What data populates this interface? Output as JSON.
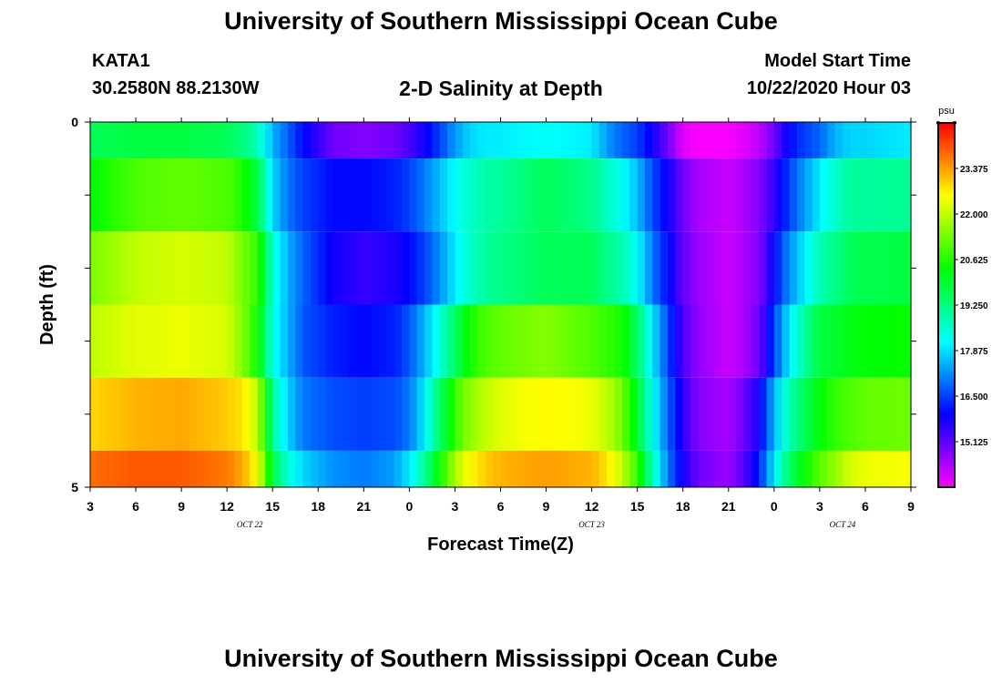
{
  "header": {
    "org_title": "University of Southern Mississippi Ocean Cube",
    "station_id": "KATA1",
    "station_coords": "30.2580N 88.2130W",
    "chart_title": "2-D Salinity at Depth",
    "model_start_label": "Model Start Time",
    "model_start_value": "10/22/2020 Hour 03"
  },
  "footer": {
    "org_title": "University of Southern Mississippi Ocean Cube"
  },
  "chart_data": {
    "type": "heatmap",
    "title": "2-D Salinity at Depth",
    "xlabel": "Forecast Time(Z)",
    "ylabel": "Depth (ft)",
    "x_tick_labels": [
      "3",
      "6",
      "9",
      "12",
      "15",
      "18",
      "21",
      "0",
      "3",
      "6",
      "9",
      "12",
      "15",
      "18",
      "21",
      "0",
      "3",
      "6",
      "9"
    ],
    "x_hours": [
      0,
      3,
      6,
      9,
      12,
      15,
      18,
      21,
      24,
      27,
      30,
      33,
      36,
      39,
      42,
      45,
      48,
      51,
      54
    ],
    "x_range_hours": [
      0,
      54
    ],
    "date_labels": [
      {
        "text": "OCT 22",
        "hour": 10.5
      },
      {
        "text": "OCT 23",
        "hour": 33
      },
      {
        "text": "OCT 24",
        "hour": 49.5
      }
    ],
    "y_tick_labels": [
      "0",
      "5"
    ],
    "ylim": [
      0,
      5
    ],
    "y_inverted": true,
    "depth_levels": [
      0.25,
      1.25,
      2.25,
      3.25,
      4.25,
      5.0
    ],
    "layer_bounds": [
      0,
      0.5,
      1.5,
      2.5,
      3.5,
      4.5,
      5
    ],
    "grid": false,
    "colorbar": {
      "unit": "psu",
      "min": 13.75,
      "max": 24.75,
      "labels": [
        23.375,
        22.0,
        20.625,
        19.25,
        17.875,
        16.5,
        15.125
      ],
      "label_text": [
        "23.375",
        "22.000",
        "20.625",
        "19.250",
        "17.875",
        "16.500",
        "15.125"
      ]
    },
    "time_keys": [
      0,
      3,
      6,
      9,
      10,
      11,
      12,
      13,
      14,
      16,
      18,
      20,
      21,
      22,
      23,
      24,
      25,
      26,
      27,
      30,
      33,
      34,
      35,
      36,
      37,
      38,
      39,
      40,
      42,
      43,
      44,
      45,
      46,
      47,
      48,
      49,
      50,
      51,
      54
    ],
    "series": [
      {
        "name": "0",
        "values": [
          19.6,
          19.8,
          19.8,
          19.6,
          19.3,
          18.8,
          17.5,
          16.8,
          16.0,
          15.0,
          14.8,
          15.0,
          15.3,
          15.8,
          16.5,
          17.3,
          17.8,
          18.0,
          18.0,
          18.2,
          18.0,
          17.3,
          16.8,
          16.5,
          15.8,
          15.0,
          14.0,
          13.8,
          13.8,
          14.0,
          14.3,
          15.0,
          16.0,
          16.5,
          16.8,
          17.5,
          17.8,
          17.8,
          18.0
        ]
      },
      {
        "name": "1",
        "values": [
          20.3,
          21.0,
          21.2,
          21.0,
          20.6,
          19.8,
          17.8,
          17.0,
          16.5,
          16.0,
          16.0,
          16.2,
          16.5,
          17.0,
          17.6,
          18.2,
          18.6,
          18.9,
          19.0,
          19.6,
          19.2,
          18.7,
          18.2,
          17.6,
          16.6,
          15.8,
          15.0,
          14.5,
          14.2,
          14.5,
          14.8,
          15.5,
          16.5,
          17.3,
          18.0,
          18.6,
          19.0,
          19.0,
          19.1
        ]
      },
      {
        "name": "2",
        "values": [
          21.4,
          22.0,
          22.2,
          22.0,
          21.4,
          20.8,
          18.5,
          17.5,
          16.8,
          15.8,
          15.5,
          15.7,
          16.0,
          16.5,
          17.2,
          18.0,
          18.6,
          19.0,
          19.2,
          19.6,
          19.6,
          19.2,
          18.8,
          18.2,
          17.0,
          16.0,
          15.1,
          14.6,
          14.2,
          14.5,
          14.8,
          16.0,
          17.2,
          18.0,
          18.8,
          19.2,
          19.6,
          19.7,
          19.8
        ]
      },
      {
        "name": "3",
        "values": [
          22.0,
          22.3,
          22.4,
          22.2,
          21.5,
          20.5,
          18.3,
          17.5,
          16.7,
          16.2,
          16.0,
          16.2,
          16.7,
          17.5,
          18.5,
          19.5,
          20.5,
          21.0,
          21.2,
          21.5,
          21.0,
          20.8,
          20.5,
          19.5,
          18.0,
          16.5,
          15.3,
          14.7,
          14.2,
          14.5,
          15.0,
          16.5,
          18.0,
          19.0,
          19.8,
          20.0,
          20.2,
          20.3,
          20.4
        ]
      },
      {
        "name": "4",
        "values": [
          22.9,
          23.2,
          23.3,
          23.0,
          22.8,
          22.0,
          19.0,
          17.8,
          17.0,
          16.6,
          16.5,
          16.6,
          17.0,
          18.0,
          19.5,
          20.8,
          21.6,
          22.0,
          22.3,
          22.6,
          22.4,
          22.0,
          21.3,
          20.0,
          18.3,
          16.8,
          15.6,
          14.8,
          14.5,
          15.0,
          15.8,
          17.5,
          18.8,
          19.6,
          20.3,
          20.8,
          21.0,
          21.2,
          21.3
        ]
      },
      {
        "name": "5",
        "values": [
          23.8,
          24.0,
          24.0,
          23.7,
          23.3,
          22.5,
          19.8,
          18.5,
          17.8,
          17.2,
          17.0,
          17.3,
          18.0,
          19.0,
          20.5,
          21.8,
          22.6,
          23.0,
          23.2,
          23.4,
          23.2,
          22.8,
          22.0,
          20.8,
          18.8,
          17.0,
          15.8,
          15.0,
          14.6,
          15.2,
          16.2,
          18.0,
          19.5,
          20.4,
          21.1,
          21.6,
          22.2,
          22.4,
          22.5
        ]
      }
    ]
  }
}
